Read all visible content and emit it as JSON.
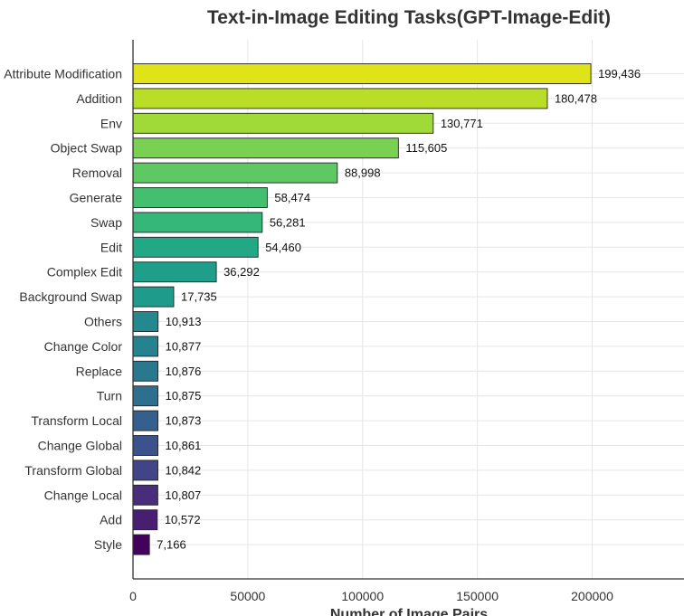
{
  "chart_data": {
    "type": "bar",
    "orientation": "horizontal",
    "title": "Text-in-Image Editing Tasks(GPT-Image-Edit)",
    "xlabel": "Number of Image Pairs",
    "ylabel": "",
    "xlim": [
      0,
      240000
    ],
    "xticks": [
      0,
      50000,
      100000,
      150000,
      200000
    ],
    "xtick_labels": [
      "0",
      "50000",
      "100000",
      "150000",
      "200000"
    ],
    "grid": true,
    "colormap": "viridis (largest value yellow, smallest purple)",
    "categories": [
      "Attribute Modification",
      "Addition",
      "Env",
      "Object Swap",
      "Removal",
      "Generate",
      "Swap",
      "Edit",
      "Complex Edit",
      "Background Swap",
      "Others",
      "Change Color",
      "Replace",
      "Turn",
      "Transform Local",
      "Change Global",
      "Transform Global",
      "Change Local",
      "Add",
      "Style"
    ],
    "values": [
      199436,
      180478,
      130771,
      115605,
      88998,
      58474,
      56281,
      54460,
      36292,
      17735,
      10913,
      10877,
      10876,
      10875,
      10873,
      10861,
      10842,
      10807,
      10572,
      7166
    ],
    "value_labels": [
      "199,436",
      "180,478",
      "130,771",
      "115,605",
      "88,998",
      "58,474",
      "56,281",
      "54,460",
      "36,292",
      "17,735",
      "10,913",
      "10,877",
      "10,876",
      "10,875",
      "10,873",
      "10,861",
      "10,842",
      "10,807",
      "10,572",
      "7,166"
    ],
    "colors": [
      "#dfe318",
      "#bade28",
      "#a0da39",
      "#7ad151",
      "#5ec962",
      "#44bf70",
      "#35b779",
      "#22a884",
      "#1f9e89",
      "#1e9b8a",
      "#23898e",
      "#26828e",
      "#2a788e",
      "#2e6e8e",
      "#355f8d",
      "#3b528b",
      "#414487",
      "#472d7b",
      "#481f70",
      "#44015b"
    ]
  }
}
